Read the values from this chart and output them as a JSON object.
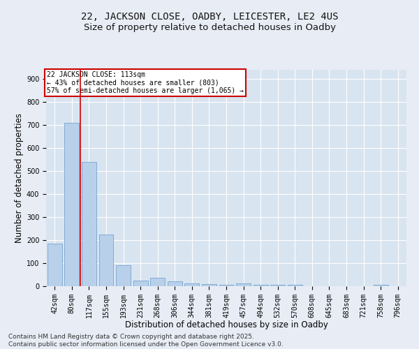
{
  "title_line1": "22, JACKSON CLOSE, OADBY, LEICESTER, LE2 4US",
  "title_line2": "Size of property relative to detached houses in Oadby",
  "xlabel": "Distribution of detached houses by size in Oadby",
  "ylabel": "Number of detached properties",
  "footnote": "Contains HM Land Registry data © Crown copyright and database right 2025.\nContains public sector information licensed under the Open Government Licence v3.0.",
  "categories": [
    "42sqm",
    "80sqm",
    "117sqm",
    "155sqm",
    "193sqm",
    "231sqm",
    "268sqm",
    "306sqm",
    "344sqm",
    "381sqm",
    "419sqm",
    "457sqm",
    "494sqm",
    "532sqm",
    "570sqm",
    "608sqm",
    "645sqm",
    "683sqm",
    "721sqm",
    "758sqm",
    "796sqm"
  ],
  "values": [
    185,
    710,
    540,
    225,
    90,
    25,
    35,
    22,
    13,
    8,
    6,
    12,
    6,
    5,
    7,
    0,
    0,
    0,
    0,
    5,
    0
  ],
  "bar_color": "#b8d0ea",
  "bar_edge_color": "#6699cc",
  "ref_line_color": "#cc0000",
  "annotation_text": "22 JACKSON CLOSE: 113sqm\n← 43% of detached houses are smaller (803)\n57% of semi-detached houses are larger (1,065) →",
  "annotation_box_color": "#ffffff",
  "annotation_box_edge_color": "#cc0000",
  "background_color": "#e8edf5",
  "plot_bg_color": "#d8e4f0",
  "grid_color": "#ffffff",
  "ylim": [
    0,
    940
  ],
  "yticks": [
    0,
    100,
    200,
    300,
    400,
    500,
    600,
    700,
    800,
    900
  ],
  "title_fontsize": 10,
  "subtitle_fontsize": 9.5,
  "tick_fontsize": 7,
  "label_fontsize": 8.5,
  "footnote_fontsize": 6.5
}
